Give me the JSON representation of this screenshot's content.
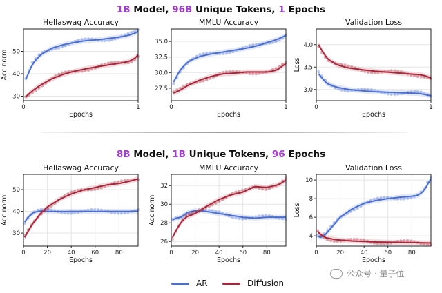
{
  "titles": {
    "top": [
      "1B",
      " Model, ",
      "96B",
      " Unique Tokens, ",
      "1",
      " Epochs"
    ],
    "bottom": [
      "8B",
      " Model, ",
      "1B",
      " Unique Tokens, ",
      "96",
      " Epochs"
    ]
  },
  "legend": {
    "ar_label": "AR",
    "diffusion_label": "Diffusion",
    "ar_color": "#4a6fd0",
    "diffusion_color": "#a8253a"
  },
  "watermark": "公众号 · 量子位",
  "chart_data": [
    {
      "id": "top-hellaswag",
      "type": "line",
      "title": "Hellaswag Accuracy",
      "xlabel": "Epochs",
      "ylabel": "Acc norm",
      "xlim": [
        0,
        1
      ],
      "ylim": [
        28,
        60
      ],
      "xticks": [
        0,
        1
      ],
      "yticks": [
        30,
        40,
        50
      ],
      "series": [
        {
          "name": "AR",
          "x": [
            0.02,
            0.08,
            0.15,
            0.25,
            0.35,
            0.45,
            0.55,
            0.65,
            0.75,
            0.85,
            0.92,
            0.98,
            1.0
          ],
          "y": [
            37.5,
            44.5,
            48.5,
            51.5,
            53.0,
            54.0,
            54.8,
            55.2,
            55.8,
            56.5,
            57.2,
            58.3,
            59.0
          ]
        },
        {
          "name": "Diffusion",
          "x": [
            0.02,
            0.08,
            0.15,
            0.25,
            0.35,
            0.45,
            0.55,
            0.65,
            0.75,
            0.85,
            0.92,
            0.98,
            1.0
          ],
          "y": [
            29.8,
            32.5,
            35.0,
            37.8,
            39.8,
            41.2,
            42.3,
            43.2,
            44.0,
            44.8,
            45.5,
            47.2,
            48.5
          ]
        }
      ]
    },
    {
      "id": "top-mmlu",
      "type": "line",
      "title": "MMLU Accuracy",
      "xlabel": "Epochs",
      "ylabel": "",
      "xlim": [
        0,
        1
      ],
      "ylim": [
        25.5,
        37
      ],
      "xticks": [
        0,
        1
      ],
      "yticks": [
        27.5,
        30.0,
        32.5,
        35.0
      ],
      "series": [
        {
          "name": "AR",
          "x": [
            0.02,
            0.08,
            0.15,
            0.25,
            0.35,
            0.45,
            0.55,
            0.65,
            0.75,
            0.85,
            0.92,
            0.98,
            1.0
          ],
          "y": [
            28.5,
            30.5,
            31.8,
            32.6,
            33.0,
            33.3,
            33.6,
            33.9,
            34.3,
            34.9,
            35.3,
            35.8,
            36.0
          ]
        },
        {
          "name": "Diffusion",
          "x": [
            0.02,
            0.08,
            0.15,
            0.25,
            0.35,
            0.45,
            0.55,
            0.65,
            0.75,
            0.85,
            0.92,
            0.98,
            1.0
          ],
          "y": [
            26.7,
            27.2,
            28.0,
            28.8,
            29.4,
            29.8,
            29.9,
            30.1,
            30.1,
            30.1,
            30.4,
            31.2,
            31.4
          ]
        }
      ]
    },
    {
      "id": "top-valloss",
      "type": "line",
      "title": "Validation Loss",
      "xlabel": "Epochs",
      "ylabel": "Loss",
      "xlim": [
        0,
        1
      ],
      "ylim": [
        2.75,
        4.35
      ],
      "xticks": [
        0,
        1
      ],
      "yticks": [
        3.0,
        3.5,
        4.0
      ],
      "series": [
        {
          "name": "AR",
          "x": [
            0.02,
            0.06,
            0.1,
            0.18,
            0.28,
            0.4,
            0.5,
            0.6,
            0.7,
            0.8,
            0.9,
            0.96,
            1.0
          ],
          "y": [
            3.35,
            3.22,
            3.12,
            3.05,
            3.0,
            2.97,
            2.95,
            2.94,
            2.93,
            2.92,
            2.91,
            2.88,
            2.86
          ]
        },
        {
          "name": "Diffusion",
          "x": [
            0.02,
            0.06,
            0.1,
            0.18,
            0.28,
            0.4,
            0.5,
            0.6,
            0.7,
            0.8,
            0.9,
            0.96,
            1.0
          ],
          "y": [
            4.0,
            3.82,
            3.68,
            3.55,
            3.48,
            3.44,
            3.41,
            3.39,
            3.37,
            3.35,
            3.33,
            3.3,
            3.25
          ]
        }
      ]
    },
    {
      "id": "bot-hellaswag",
      "type": "line",
      "title": "Hellaswag Accuracy",
      "xlabel": "Epochs",
      "ylabel": "Acc norm",
      "xlim": [
        0,
        96
      ],
      "ylim": [
        24,
        57
      ],
      "xticks": [
        0,
        20,
        40,
        60,
        80
      ],
      "yticks": [
        30,
        40,
        50
      ],
      "series": [
        {
          "name": "AR",
          "x": [
            1,
            4,
            8,
            12,
            16,
            20,
            30,
            40,
            50,
            60,
            70,
            80,
            90,
            96
          ],
          "y": [
            35,
            37.5,
            39.3,
            40.0,
            40.2,
            40.0,
            39.9,
            40.0,
            40.0,
            39.9,
            40.0,
            40.0,
            40.0,
            40.1
          ]
        },
        {
          "name": "Diffusion",
          "x": [
            1,
            4,
            8,
            12,
            16,
            20,
            30,
            40,
            50,
            60,
            70,
            80,
            90,
            96
          ],
          "y": [
            28,
            31,
            34.5,
            37.5,
            40.0,
            42.0,
            45.5,
            48.0,
            49.8,
            51.0,
            52.2,
            52.8,
            54.0,
            55.0
          ]
        }
      ]
    },
    {
      "id": "bot-mmlu",
      "type": "line",
      "title": "MMLU Accuracy",
      "xlabel": "Epochs",
      "ylabel": "Acc norm",
      "xlim": [
        0,
        96
      ],
      "ylim": [
        25.5,
        33.2
      ],
      "xticks": [
        0,
        20,
        40,
        60,
        80
      ],
      "yticks": [
        26,
        28,
        30,
        32
      ],
      "series": [
        {
          "name": "AR",
          "x": [
            1,
            4,
            8,
            12,
            16,
            20,
            25,
            30,
            40,
            50,
            60,
            70,
            80,
            90,
            96
          ],
          "y": [
            28.3,
            28.5,
            28.6,
            29.0,
            29.2,
            29.3,
            29.3,
            29.2,
            29.0,
            28.8,
            28.6,
            28.5,
            28.6,
            28.6,
            28.6
          ]
        },
        {
          "name": "Diffusion",
          "x": [
            1,
            4,
            8,
            12,
            16,
            20,
            25,
            30,
            40,
            50,
            60,
            70,
            80,
            90,
            96
          ],
          "y": [
            26.4,
            27.2,
            28.0,
            28.6,
            28.8,
            29.0,
            29.4,
            29.8,
            30.5,
            31.0,
            31.3,
            31.9,
            31.8,
            32.1,
            32.6
          ]
        }
      ]
    },
    {
      "id": "bot-valloss",
      "type": "line",
      "title": "Validation Loss",
      "xlabel": "Epochs",
      "ylabel": "Loss",
      "xlim": [
        0,
        96
      ],
      "ylim": [
        2.9,
        10.6
      ],
      "xticks": [
        0,
        20,
        40,
        60,
        80
      ],
      "yticks": [
        4,
        6,
        8,
        10
      ],
      "series": [
        {
          "name": "AR",
          "x": [
            1,
            4,
            8,
            12,
            16,
            20,
            30,
            40,
            50,
            60,
            70,
            80,
            85,
            90,
            93,
            96
          ],
          "y": [
            4.0,
            3.8,
            4.2,
            4.8,
            5.4,
            6.0,
            6.9,
            7.5,
            7.8,
            8.0,
            8.15,
            8.25,
            8.35,
            8.8,
            9.5,
            10.1
          ]
        },
        {
          "name": "Diffusion",
          "x": [
            1,
            4,
            8,
            12,
            16,
            20,
            30,
            40,
            50,
            60,
            70,
            80,
            90,
            96
          ],
          "y": [
            4.5,
            4.1,
            3.8,
            3.7,
            3.6,
            3.55,
            3.45,
            3.4,
            3.35,
            3.32,
            3.3,
            3.28,
            3.25,
            3.24
          ]
        }
      ]
    }
  ]
}
